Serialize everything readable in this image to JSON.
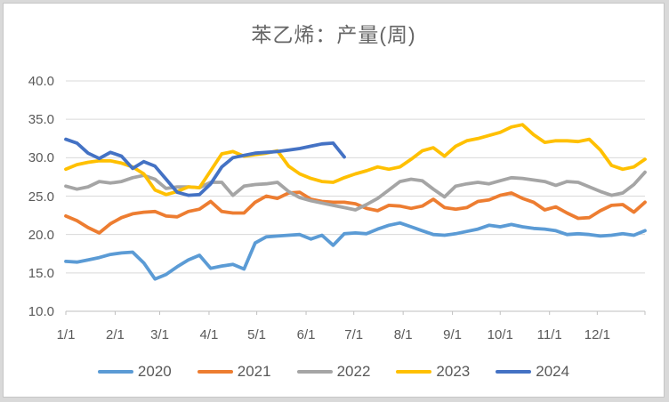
{
  "chart_data": {
    "type": "line",
    "title": "苯乙烯：产量(周)",
    "x_axis": {
      "tick_labels": [
        "1/1",
        "2/1",
        "3/1",
        "4/1",
        "5/1",
        "6/1",
        "7/1",
        "8/1",
        "9/1",
        "10/1",
        "11/1",
        "12/1"
      ],
      "unit": "weekly points across one year"
    },
    "y_axis": {
      "tick_labels": [
        "40.0",
        "35.0",
        "30.0",
        "25.0",
        "20.0",
        "15.0",
        "10.0"
      ],
      "min": 10,
      "max": 40,
      "step": 5
    },
    "grid": "horizontal",
    "legend_position": "bottom",
    "axis_color": "#BFBFBF",
    "gridline_color": "#D9D9D9",
    "series": [
      {
        "name": "2020",
        "color": "#5B9BD5",
        "values": [
          16.5,
          16.4,
          16.7,
          17.0,
          17.4,
          17.6,
          17.7,
          16.3,
          14.2,
          14.8,
          15.8,
          16.7,
          17.3,
          15.6,
          15.9,
          16.1,
          15.5,
          18.9,
          19.7,
          19.8,
          19.9,
          20.0,
          19.4,
          19.9,
          18.6,
          20.1,
          20.2,
          20.1,
          20.7,
          21.2,
          21.5,
          21.0,
          20.5,
          20.0,
          19.9,
          20.1,
          20.4,
          20.7,
          21.2,
          21.0,
          21.3,
          21.0,
          20.8,
          20.7,
          20.5,
          20.0,
          20.1,
          20.0,
          19.8,
          19.9,
          20.1,
          19.9,
          20.5
        ]
      },
      {
        "name": "2021",
        "color": "#ED7D31",
        "values": [
          22.4,
          21.8,
          20.9,
          20.2,
          21.4,
          22.2,
          22.7,
          22.9,
          23.0,
          22.4,
          22.3,
          23.0,
          23.3,
          24.3,
          23.0,
          22.8,
          22.8,
          24.2,
          25.0,
          24.7,
          25.4,
          25.5,
          24.6,
          24.3,
          24.2,
          24.2,
          24.0,
          23.4,
          23.1,
          23.8,
          23.7,
          23.4,
          23.7,
          24.6,
          23.5,
          23.3,
          23.5,
          24.3,
          24.5,
          25.1,
          25.4,
          24.7,
          24.2,
          23.2,
          23.6,
          22.8,
          22.1,
          22.2,
          23.1,
          23.8,
          23.9,
          22.9,
          24.2
        ]
      },
      {
        "name": "2022",
        "color": "#A5A5A5",
        "values": [
          26.3,
          25.9,
          26.2,
          26.9,
          26.7,
          26.9,
          27.4,
          27.7,
          27.2,
          26.0,
          26.2,
          26.2,
          26.1,
          26.8,
          26.8,
          25.1,
          26.3,
          26.5,
          26.6,
          26.8,
          25.6,
          24.8,
          24.4,
          24.1,
          23.8,
          23.5,
          23.2,
          23.9,
          24.7,
          25.8,
          26.9,
          27.2,
          27.0,
          25.9,
          24.9,
          26.3,
          26.6,
          26.8,
          26.6,
          27.0,
          27.4,
          27.3,
          27.1,
          26.9,
          26.4,
          26.9,
          26.8,
          26.2,
          25.6,
          25.1,
          25.4,
          26.5,
          28.1
        ]
      },
      {
        "name": "2023",
        "color": "#FFC000",
        "values": [
          28.5,
          29.1,
          29.4,
          29.6,
          29.6,
          29.3,
          28.8,
          27.9,
          25.8,
          25.2,
          25.6,
          26.2,
          26.1,
          28.3,
          30.5,
          30.8,
          30.2,
          30.4,
          30.6,
          30.9,
          28.9,
          27.9,
          27.3,
          26.9,
          26.8,
          27.4,
          27.9,
          28.3,
          28.8,
          28.5,
          28.8,
          29.8,
          30.9,
          31.3,
          30.2,
          31.5,
          32.2,
          32.5,
          32.9,
          33.3,
          34.0,
          34.3,
          33.0,
          32.0,
          32.2,
          32.2,
          32.1,
          32.4,
          31.0,
          29.0,
          28.5,
          28.8,
          29.8
        ]
      },
      {
        "name": "2024",
        "color": "#4472C4",
        "values": [
          32.4,
          31.9,
          30.6,
          29.9,
          30.7,
          30.2,
          28.6,
          29.5,
          28.9,
          27.2,
          25.5,
          25.1,
          25.2,
          26.6,
          28.8,
          30.0,
          30.3,
          30.6,
          30.7,
          30.8,
          31.0,
          31.2,
          31.5,
          31.8,
          31.9,
          30.1
        ]
      }
    ]
  }
}
